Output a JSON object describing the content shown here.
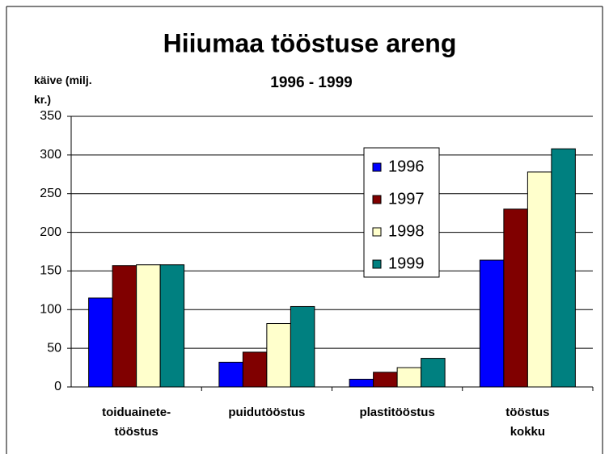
{
  "chart_data": {
    "type": "bar",
    "title": "Hiiumaa tööstuse areng",
    "subtitle": "1996 - 1999",
    "y_label": "käive (milj.\nkr.)",
    "categories": [
      "toiduainete-\ntööstus",
      "puidutööstus",
      "plastitööstus",
      "tööstus\nkokku"
    ],
    "series": [
      {
        "name": "1996",
        "color": "#0000ff",
        "values": [
          115,
          32,
          10,
          164
        ]
      },
      {
        "name": "1997",
        "color": "#800000",
        "values": [
          157,
          45,
          19,
          230
        ]
      },
      {
        "name": "1998",
        "color": "#ffffcc",
        "values": [
          158,
          82,
          25,
          278
        ]
      },
      {
        "name": "1999",
        "color": "#008080",
        "values": [
          158,
          104,
          37,
          308
        ]
      }
    ],
    "ylim": [
      0,
      350
    ],
    "yticks": [
      0,
      50,
      100,
      150,
      200,
      250,
      300,
      350
    ],
    "grid": true,
    "legend": "inside-right"
  }
}
